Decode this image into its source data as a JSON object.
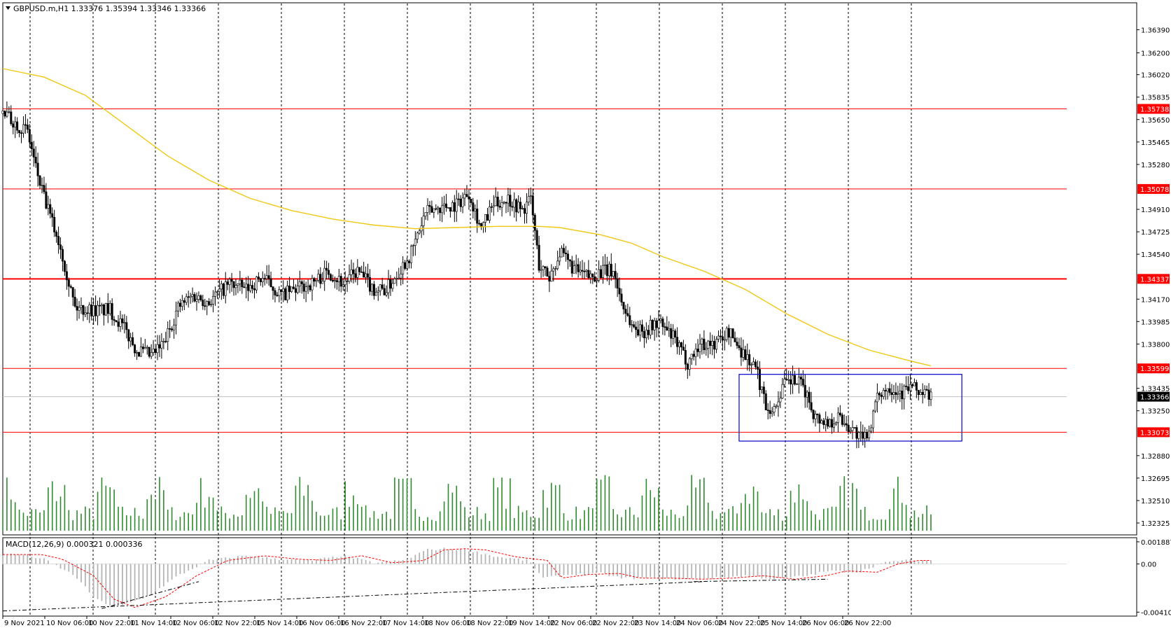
{
  "window": {
    "symbol_info": "GBPUSD.m,H1  1.33376 1.35394 1.33346 1.33366",
    "dropdown_icon": "triangle-down-icon"
  },
  "colors": {
    "background": "#ffffff",
    "candle": "#000000",
    "grid": "#000000",
    "level_line": "#ff0000",
    "level_badge": "#ff0000",
    "ma_line": "#f0c814",
    "range_box": "#0000cc",
    "volume": "#2e8b2e",
    "macd_hist": "#b4b4b4",
    "macd_signal": "#ff0000",
    "trendline": "#000000",
    "current_price_badge": "#000000"
  },
  "price_axis": {
    "ticks": [
      "1.36390",
      "1.36200",
      "1.36020",
      "1.35835",
      "1.35650",
      "1.35465",
      "1.35280",
      "1.34910",
      "1.34725",
      "1.34540",
      "1.34170",
      "1.33985",
      "1.33800",
      "1.33435",
      "1.33250",
      "1.32880",
      "1.32695",
      "1.32510",
      "1.32325"
    ],
    "current_price": "1.33366"
  },
  "levels": [
    {
      "label": "1.35738",
      "value": 1.35738
    },
    {
      "label": "1.35078",
      "value": 1.35078
    },
    {
      "label": "1.34337",
      "value": 1.34337
    },
    {
      "label": "1.33599",
      "value": 1.33599
    },
    {
      "label": "1.33073",
      "value": 1.33073
    }
  ],
  "macd": {
    "label": "MACD(12,26,9) 0.000321 0.000336",
    "ticks": [
      "0.001887",
      "0.00",
      "-0.004101"
    ]
  },
  "time_axis": {
    "labels": [
      "9 Nov 2021",
      "10 Nov 06:00",
      "10 Nov 22:00",
      "11 Nov 14:00",
      "12 Nov 06:00",
      "12 Nov 22:00",
      "15 Nov 14:00",
      "16 Nov 06:00",
      "16 Nov 22:00",
      "17 Nov 14:00",
      "18 Nov 06:00",
      "18 Nov 22:00",
      "19 Nov 14:00",
      "22 Nov 06:00",
      "22 Nov 22:00",
      "23 Nov 14:00",
      "24 Nov 06:00",
      "24 Nov 22:00",
      "25 Nov 14:00",
      "26 Nov 06:00",
      "26 Nov 22:00"
    ]
  },
  "chart_data": {
    "type": "candlestick",
    "symbol": "GBPUSD.m",
    "timeframe": "H1",
    "ylim": [
      1.3225,
      1.3652
    ],
    "price_path": [
      [
        0,
        1.357
      ],
      [
        8,
        1.356
      ],
      [
        12,
        1.3555
      ],
      [
        16,
        1.3525
      ],
      [
        20,
        1.35
      ],
      [
        28,
        1.346
      ],
      [
        35,
        1.341
      ],
      [
        45,
        1.3408
      ],
      [
        52,
        1.3408
      ],
      [
        58,
        1.3395
      ],
      [
        65,
        1.3375
      ],
      [
        72,
        1.337
      ],
      [
        78,
        1.338
      ],
      [
        85,
        1.341
      ],
      [
        92,
        1.342
      ],
      [
        100,
        1.3415
      ],
      [
        110,
        1.343
      ],
      [
        118,
        1.3425
      ],
      [
        126,
        1.3435
      ],
      [
        135,
        1.342
      ],
      [
        142,
        1.3425
      ],
      [
        150,
        1.343
      ],
      [
        158,
        1.344
      ],
      [
        165,
        1.343
      ],
      [
        172,
        1.344
      ],
      [
        180,
        1.3425
      ],
      [
        186,
        1.3425
      ],
      [
        192,
        1.344
      ],
      [
        198,
        1.3455
      ],
      [
        205,
        1.3488
      ],
      [
        212,
        1.3493
      ],
      [
        220,
        1.3495
      ],
      [
        226,
        1.3505
      ],
      [
        232,
        1.3475
      ],
      [
        238,
        1.3495
      ],
      [
        245,
        1.35
      ],
      [
        252,
        1.349
      ],
      [
        256,
        1.35
      ],
      [
        260,
        1.3445
      ],
      [
        265,
        1.3435
      ],
      [
        270,
        1.3455
      ],
      [
        278,
        1.344
      ],
      [
        285,
        1.3435
      ],
      [
        290,
        1.344
      ],
      [
        296,
        1.344
      ],
      [
        300,
        1.3415
      ],
      [
        305,
        1.3395
      ],
      [
        310,
        1.339
      ],
      [
        318,
        1.3398
      ],
      [
        325,
        1.3385
      ],
      [
        332,
        1.3365
      ],
      [
        338,
        1.338
      ],
      [
        345,
        1.338
      ],
      [
        352,
        1.339
      ],
      [
        358,
        1.3375
      ],
      [
        365,
        1.336
      ],
      [
        370,
        1.333
      ],
      [
        374,
        1.3325
      ],
      [
        378,
        1.3345
      ],
      [
        383,
        1.335
      ],
      [
        388,
        1.3345
      ],
      [
        394,
        1.332
      ],
      [
        400,
        1.3315
      ],
      [
        405,
        1.332
      ],
      [
        412,
        1.331
      ],
      [
        417,
        1.33
      ],
      [
        420,
        1.331
      ],
      [
        425,
        1.334
      ],
      [
        430,
        1.3345
      ],
      [
        436,
        1.334
      ],
      [
        440,
        1.3345
      ],
      [
        445,
        1.334
      ],
      [
        450,
        1.3337
      ]
    ],
    "ma_path": [
      [
        0,
        1.3607
      ],
      [
        20,
        1.36
      ],
      [
        40,
        1.3585
      ],
      [
        60,
        1.356
      ],
      [
        80,
        1.3535
      ],
      [
        100,
        1.3515
      ],
      [
        120,
        1.35
      ],
      [
        140,
        1.349
      ],
      [
        160,
        1.3483
      ],
      [
        180,
        1.3478
      ],
      [
        200,
        1.3475
      ],
      [
        220,
        1.3476
      ],
      [
        240,
        1.3477
      ],
      [
        260,
        1.3477
      ],
      [
        270,
        1.3476
      ],
      [
        290,
        1.347
      ],
      [
        305,
        1.3463
      ],
      [
        320,
        1.3452
      ],
      [
        340,
        1.344
      ],
      [
        360,
        1.3425
      ],
      [
        380,
        1.3405
      ],
      [
        400,
        1.3388
      ],
      [
        420,
        1.3375
      ],
      [
        440,
        1.3366
      ],
      [
        450,
        1.3362
      ]
    ],
    "range_box": {
      "x_start": 357,
      "x_end": 465,
      "high": 1.3355,
      "low": 1.33
    },
    "macd_ylim": [
      -0.0042,
      0.002
    ],
    "macd_path": [
      [
        0,
        0.0008
      ],
      [
        10,
        0.0008
      ],
      [
        20,
        0.0004
      ],
      [
        35,
        -0.001
      ],
      [
        45,
        -0.003
      ],
      [
        55,
        -0.0037
      ],
      [
        70,
        -0.0028
      ],
      [
        85,
        -0.001
      ],
      [
        100,
        0.0003
      ],
      [
        118,
        0.0007
      ],
      [
        135,
        0.0004
      ],
      [
        150,
        0.0003
      ],
      [
        165,
        0.0007
      ],
      [
        180,
        0.0001
      ],
      [
        195,
        0.0003
      ],
      [
        205,
        0.0012
      ],
      [
        215,
        0.0013
      ],
      [
        225,
        0.0012
      ],
      [
        240,
        0.0006
      ],
      [
        255,
        0.0003
      ],
      [
        262,
        -0.0012
      ],
      [
        275,
        -0.0009
      ],
      [
        290,
        -0.0008
      ],
      [
        300,
        -0.0012
      ],
      [
        315,
        -0.0012
      ],
      [
        330,
        -0.0013
      ],
      [
        345,
        -0.0012
      ],
      [
        360,
        -0.001
      ],
      [
        375,
        -0.0013
      ],
      [
        390,
        -0.001
      ],
      [
        400,
        -0.0006
      ],
      [
        415,
        -0.0007
      ],
      [
        425,
        0.0
      ],
      [
        435,
        0.0003
      ],
      [
        450,
        0.0003
      ]
    ]
  }
}
